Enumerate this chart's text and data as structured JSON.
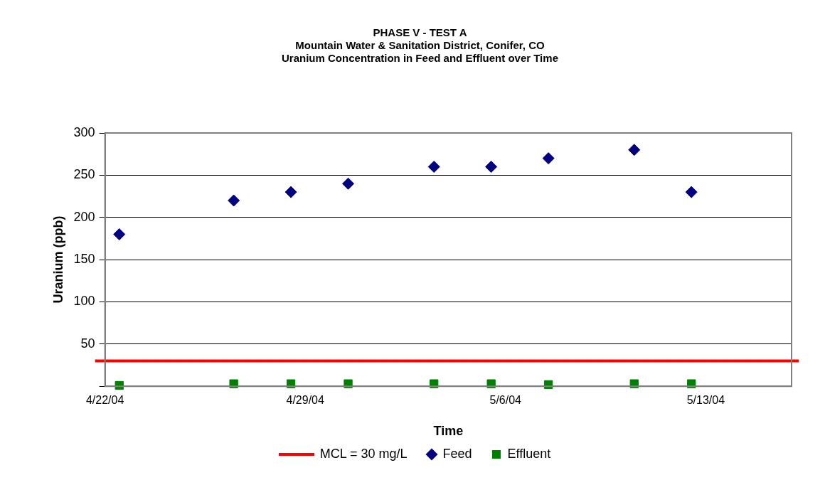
{
  "chart_data": {
    "type": "scatter",
    "title": "PHASE V - TEST A",
    "subtitle": "Mountain Water & Sanitation District, Conifer, CO\nUranium Concentration in Feed and Effluent over Time",
    "xlabel": "Time",
    "ylabel": "Uranium (ppb)",
    "x": [
      "--04-22T12:00",
      "--04-26T12:00",
      "--04-28T12:00",
      "--04-30T12:00",
      "--05-03T12:00",
      "--05-05T12:00",
      "--05-07T12:00",
      "--05-10T12:00",
      "--05-12T12:00"
    ],
    "series": [
      {
        "name": "Feed",
        "color": "#000080",
        "marker": "diamond",
        "values": [
          180,
          220,
          230,
          240,
          260,
          260,
          270,
          280,
          230
        ]
      },
      {
        "name": "Effluent",
        "color": "#008000",
        "marker": "square",
        "values": [
          1,
          3,
          3,
          3,
          3,
          3,
          2,
          3,
          3
        ]
      }
    ],
    "ref_lines": [
      {
        "axis": "y",
        "value": 30,
        "label": "MCL = 30 mg/L",
        "color": "#ff0000"
      }
    ],
    "xlim": [
      "--04-22",
      "--05-16"
    ],
    "xticks": [
      {
        "value": "--04-22",
        "label": "4/22/04"
      },
      {
        "value": "--04-29",
        "label": "4/29/04"
      },
      {
        "value": "--05-06",
        "label": "5/6/04"
      },
      {
        "value": "--05-13",
        "label": "5/13/04"
      }
    ],
    "ylim": [
      0,
      300
    ],
    "yticks": [
      {
        "value": 0,
        "label": null
      },
      50,
      100,
      150,
      200,
      250,
      300
    ],
    "grid": "y",
    "legend": "bottom"
  }
}
